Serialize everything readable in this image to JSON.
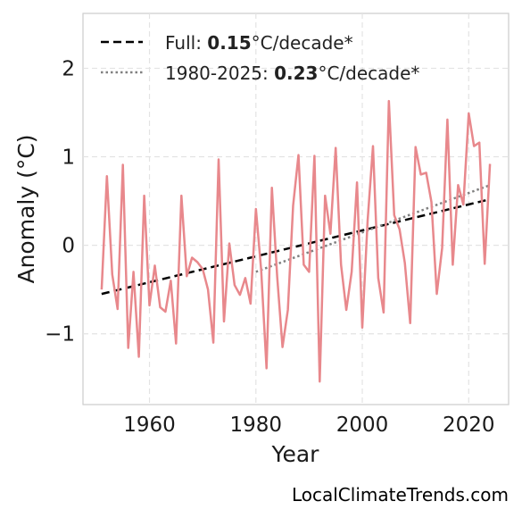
{
  "chart_data": {
    "type": "line",
    "xlabel": "Year",
    "ylabel": "Anomaly (°C)",
    "xlim": [
      1947.5,
      2027.5
    ],
    "ylim": [
      -1.8,
      2.62
    ],
    "xticks": [
      1960,
      1980,
      2000,
      2020
    ],
    "xtick_labels": [
      "1960",
      "1980",
      "2000",
      "2020"
    ],
    "yticks": [
      -1,
      0,
      1,
      2
    ],
    "ytick_labels": [
      "−1",
      "0",
      "1",
      "2"
    ],
    "grid": true,
    "legend_position": "top-left",
    "series": [
      {
        "color": "#e8888c",
        "x": [
          1951,
          1952,
          1953,
          1954,
          1955,
          1956,
          1957,
          1958,
          1959,
          1960,
          1961,
          1962,
          1963,
          1964,
          1965,
          1966,
          1967,
          1968,
          1969,
          1970,
          1971,
          1972,
          1973,
          1974,
          1975,
          1976,
          1977,
          1978,
          1979,
          1980,
          1981,
          1982,
          1983,
          1984,
          1985,
          1986,
          1987,
          1988,
          1989,
          1990,
          1991,
          1992,
          1993,
          1994,
          1995,
          1996,
          1997,
          1998,
          1999,
          2000,
          2001,
          2002,
          2003,
          2004,
          2005,
          2006,
          2007,
          2008,
          2009,
          2010,
          2011,
          2012,
          2013,
          2014,
          2015,
          2016,
          2017,
          2018,
          2019,
          2020,
          2021,
          2022,
          2023,
          2024
        ],
        "y": [
          -0.5,
          0.78,
          -0.33,
          -0.72,
          0.91,
          -1.16,
          -0.3,
          -1.26,
          0.56,
          -0.68,
          -0.23,
          -0.7,
          -0.75,
          -0.4,
          -1.11,
          0.56,
          -0.35,
          -0.14,
          -0.19,
          -0.27,
          -0.5,
          -1.1,
          0.97,
          -0.86,
          0.02,
          -0.45,
          -0.56,
          -0.37,
          -0.66,
          0.41,
          -0.28,
          -1.39,
          0.65,
          -0.35,
          -1.15,
          -0.73,
          0.45,
          1.02,
          -0.22,
          -0.3,
          1.01,
          -1.54,
          0.56,
          0.13,
          1.1,
          -0.22,
          -0.73,
          -0.3,
          0.71,
          -0.93,
          0.28,
          1.12,
          -0.37,
          -0.76,
          1.63,
          0.34,
          0.18,
          -0.2,
          -0.88,
          1.11,
          0.8,
          0.82,
          0.49,
          -0.55,
          -0.03,
          1.42,
          -0.22,
          0.68,
          0.46,
          1.49,
          1.12,
          1.16,
          -0.21,
          0.92
        ]
      }
    ],
    "trend_lines": [
      {
        "label": "Full",
        "value": "0.15",
        "unit": "°C/decade*",
        "style": "dashed",
        "color": "#000000",
        "x": [
          1951,
          2024
        ],
        "y": [
          -0.55,
          0.52
        ]
      },
      {
        "label": "1980-2025",
        "value": "0.23",
        "unit": "°C/decade*",
        "style": "dotted",
        "color": "#808080",
        "x": [
          1980,
          2024
        ],
        "y": [
          -0.3,
          0.68
        ]
      }
    ]
  },
  "legend": {
    "items": [
      {
        "prefix": "Full: ",
        "value": "0.15",
        "suffix": "°C/decade*"
      },
      {
        "prefix": "1980-2025: ",
        "value": "0.23",
        "suffix": "°C/decade*"
      }
    ]
  },
  "credit": "LocalClimateTrends.com"
}
